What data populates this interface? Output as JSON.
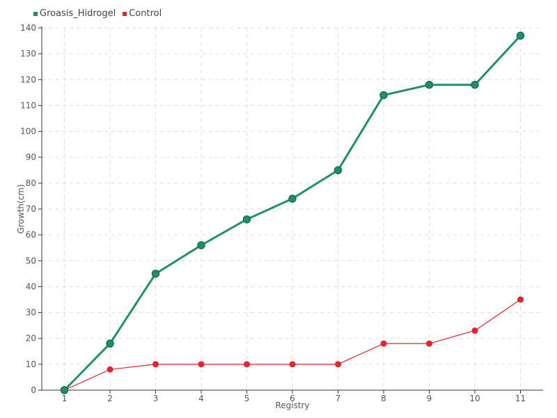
{
  "chart_data": {
    "type": "line",
    "title": "",
    "xlabel": "Registry",
    "ylabel": "Growth(cm)",
    "categories": [
      "1",
      "2",
      "3",
      "4",
      "5",
      "6",
      "7",
      "8",
      "9",
      "10",
      "11"
    ],
    "ylim": [
      0,
      140
    ],
    "yticks": [
      0,
      10,
      20,
      30,
      40,
      50,
      60,
      70,
      80,
      90,
      100,
      110,
      120,
      130,
      140
    ],
    "grid": true,
    "legend_position": "top-left",
    "series": [
      {
        "name": "Groasis_Hidrogel",
        "color": "#1f8f6f",
        "values": [
          0,
          18,
          45,
          56,
          66,
          74,
          85,
          114,
          118,
          118,
          137
        ]
      },
      {
        "name": "Control",
        "color": "#e3242b",
        "values": [
          0,
          8,
          10,
          10,
          10,
          10,
          10,
          18,
          18,
          23,
          35
        ]
      }
    ]
  }
}
